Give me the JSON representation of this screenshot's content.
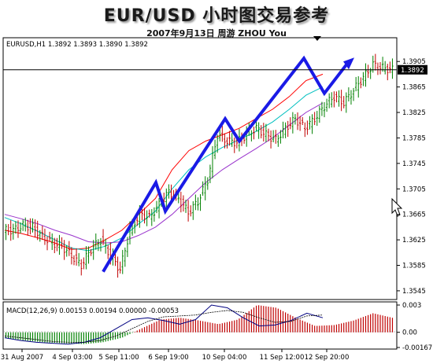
{
  "title": "EUR/USD 小时图交易参考",
  "subtitle": "2007年9月13日   周游 ZHOU You",
  "chart_data": [
    {
      "type": "candlestick",
      "info_label": "EURUSD,H1  1.3892 1.3893 1.3890 1.3892",
      "ylim": [
        1.3535,
        1.3925
      ],
      "y_ticks": [
        "1.3905",
        "1.3865",
        "1.3825",
        "1.3785",
        "1.3745",
        "1.3705",
        "1.3665",
        "1.3625",
        "1.3585",
        "1.3545"
      ],
      "y_tick_values": [
        1.3905,
        1.3865,
        1.3825,
        1.3785,
        1.3745,
        1.3705,
        1.3665,
        1.3625,
        1.3585,
        1.3545
      ],
      "current_price": "1.3892",
      "current_price_value": 1.3892,
      "x_ticks": [
        "31 Aug 2007",
        "4 Sep 03:00",
        "5 Sep 11:00",
        "6 Sep 19:00",
        "10 Sep 04:00",
        "11 Sep 12:00",
        "12 Sep 20:00"
      ],
      "approx_closes": [
        1.364,
        1.3648,
        1.3645,
        1.363,
        1.362,
        1.3615,
        1.36,
        1.3585,
        1.361,
        1.3625,
        1.36,
        1.3578,
        1.364,
        1.3665,
        1.366,
        1.368,
        1.37,
        1.369,
        1.3668,
        1.3685,
        1.372,
        1.379,
        1.378,
        1.3778,
        1.379,
        1.38,
        1.379,
        1.3782,
        1.38,
        1.3815,
        1.38,
        1.3815,
        1.3835,
        1.385,
        1.384,
        1.386,
        1.388,
        1.39,
        1.3895,
        1.3892
      ],
      "moving_averages": [
        {
          "color": "#ff0000",
          "values": [
            1.364,
            1.3635,
            1.3628,
            1.362,
            1.361,
            1.3612,
            1.3625,
            1.364,
            1.3665,
            1.369,
            1.3735,
            1.3765,
            1.378,
            1.379,
            1.38,
            1.3815,
            1.383,
            1.385,
            1.3875,
            1.3885
          ]
        },
        {
          "color": "#00bfbf",
          "values": [
            1.366,
            1.365,
            1.3638,
            1.3625,
            1.3612,
            1.3608,
            1.3615,
            1.3628,
            1.365,
            1.367,
            1.3705,
            1.3735,
            1.3755,
            1.377,
            1.3782,
            1.3795,
            1.381,
            1.383,
            1.3852,
            1.3865
          ]
        },
        {
          "color": "#9933cc",
          "values": [
            1.3665,
            1.3658,
            1.365,
            1.364,
            1.3632,
            1.3622,
            1.362,
            1.3622,
            1.3632,
            1.3645,
            1.3665,
            1.369,
            1.3715,
            1.3735,
            1.3752,
            1.3768,
            1.3785,
            1.3805,
            1.3825,
            1.384
          ]
        }
      ],
      "annotation_path": [
        1.3575,
        1.3715,
        1.367,
        1.3815,
        1.378,
        1.391,
        1.3855,
        1.39
      ]
    },
    {
      "type": "bar",
      "info_label": "MACD(12,26,9) 0.00153 0.00194 0.00000 -0.00053",
      "ylim": [
        -0.00167,
        0.003
      ],
      "y_ticks": [
        "0.003",
        "0.00",
        "-0.00167"
      ],
      "y_tick_values": [
        0.003,
        0.0,
        -0.00167
      ],
      "positive_color": "#c00000",
      "negative_color": "#008000",
      "macd_line": [
        -0.0006,
        -0.0009,
        -0.0011,
        -0.0012,
        -0.0013,
        -0.0011,
        -0.0006,
        0.0004,
        0.0014,
        0.0016,
        0.0013,
        0.0009,
        0.0014,
        0.003,
        0.0027,
        0.0016,
        0.0007,
        0.0008,
        0.0013,
        0.0021,
        0.0016
      ],
      "signal_line": [
        -0.0004,
        -0.0006,
        -0.0008,
        -0.001,
        -0.0011,
        -0.0011,
        -0.0009,
        -0.0004,
        0.0004,
        0.0012,
        0.0017,
        0.0018,
        0.0019,
        0.0022,
        0.0024,
        0.0022,
        0.0016,
        0.0011,
        0.0012,
        0.0018,
        0.0019
      ]
    }
  ]
}
